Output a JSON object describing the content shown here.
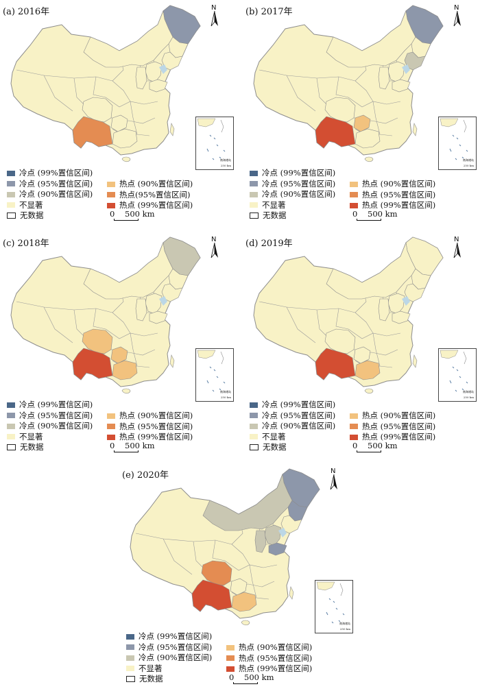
{
  "panels": [
    {
      "title": "(a) 2016年",
      "key": "a"
    },
    {
      "title": "(b) 2017年",
      "key": "b"
    },
    {
      "title": "(c) 2018年",
      "key": "c"
    },
    {
      "title": "(d) 2019年",
      "key": "d"
    },
    {
      "title": "(e) 2020年",
      "key": "e"
    }
  ],
  "legend": {
    "cold99": "冷点 (99%置信区间)",
    "cold95": "冷点 (95%置信区间)",
    "cold90": "冷点 (90%置信区间)",
    "nonsig": "不显著",
    "nodata": "无数据",
    "hot90": "热点 (90%置信区间)",
    "hot95_a": "热点(95%置信区间)",
    "hot95": "热点 (95%置信区间)",
    "hot99": "热点 (99%置信区间)"
  },
  "scale": {
    "zero": "0",
    "label": "500 km"
  },
  "north_label": "N",
  "inset": {
    "label": "南海诸岛",
    "scale": "250 km"
  },
  "colors": {
    "cold99": "#4a6788",
    "cold95": "#8d97aa",
    "cold90": "#c9c7b2",
    "nonsig": "#f8f2c6",
    "hot90": "#f2c27e",
    "hot95": "#e48c52",
    "hot99": "#d34e32",
    "border": "#8c8c8c",
    "water": "#bcd7e6"
  },
  "map_data": {
    "a": {
      "heilongjiang": "cold95",
      "yunnan": "hot95"
    },
    "b": {
      "heilongjiang": "cold95",
      "liaoning": "cold90",
      "yunnan": "hot99",
      "guizhou": "hot90"
    },
    "c": {
      "heilongjiang": "cold90",
      "yunnan": "hot99",
      "sichuan": "hot90",
      "guizhou": "hot90",
      "guangxi": "hot90"
    },
    "d": {
      "yunnan": "hot99",
      "guangxi": "hot90"
    },
    "e": {
      "heilongjiang": "cold95",
      "jilin": "cold95",
      "neimenggu": "cold90",
      "hebei": "cold90",
      "shandong": "cold95",
      "shanxi": "cold90",
      "sichuan": "hot95",
      "yunnan": "hot99",
      "guangxi": "hot90"
    }
  }
}
